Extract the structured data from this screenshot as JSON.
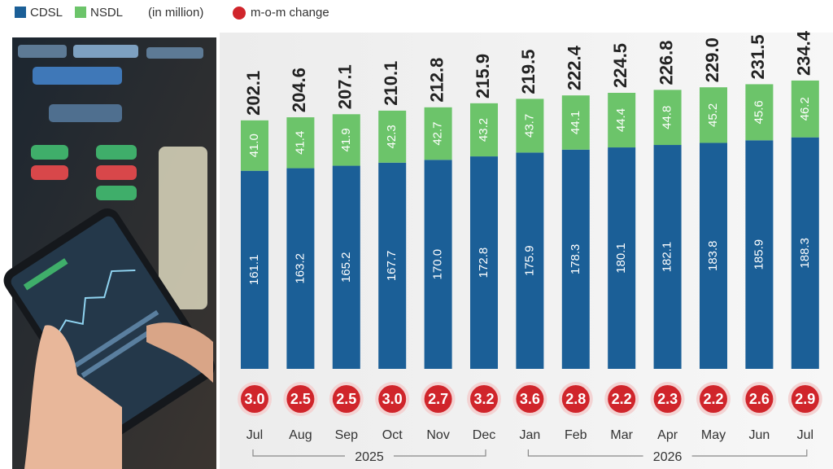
{
  "chart_data": {
    "type": "stacked-bar",
    "unit_note": "(in million)",
    "categories": [
      "Jul",
      "Aug",
      "Sep",
      "Oct",
      "Nov",
      "Dec",
      "Jan",
      "Feb",
      "Mar",
      "Apr",
      "May",
      "Jun",
      "Jul"
    ],
    "x_groups": [
      "2025",
      "2026"
    ],
    "series": [
      {
        "name": "CDSL",
        "color": "#1b5f97",
        "values": [
          161.1,
          163.2,
          165.2,
          167.7,
          170.0,
          172.8,
          175.9,
          178.3,
          180.1,
          182.1,
          183.8,
          185.9,
          188.3
        ],
        "value_labels": [
          "161.1",
          "163.2",
          "165.2",
          "167.7",
          "170.0",
          "172.8",
          "175.9",
          "178.3",
          "180.1",
          "182.1",
          "183.8",
          "185.9",
          "188.3"
        ]
      },
      {
        "name": "NSDL",
        "color": "#6cc46a",
        "values": [
          41.0,
          41.4,
          41.9,
          42.3,
          42.7,
          43.2,
          43.7,
          44.1,
          44.4,
          44.8,
          45.2,
          45.6,
          46.2
        ],
        "value_labels": [
          "41.0",
          "41.4",
          "41.9",
          "42.3",
          "42.7",
          "43.2",
          "43.7",
          "44.1",
          "44.4",
          "44.8",
          "45.2",
          "45.6",
          "46.2"
        ]
      }
    ],
    "totals": {
      "values": [
        202.1,
        204.6,
        207.1,
        210.1,
        212.8,
        215.9,
        219.5,
        222.4,
        224.5,
        226.8,
        229.0,
        231.5,
        234.4
      ],
      "value_labels": [
        "202.1",
        "204.6",
        "207.1",
        "210.1",
        "212.8",
        "215.9",
        "219.5",
        "222.4",
        "224.5",
        "226.8",
        "229.0",
        "231.5",
        "234.4"
      ]
    },
    "change": {
      "name": "m-o-m change",
      "color": "#d0252b",
      "values": [
        3.0,
        2.5,
        2.5,
        3.0,
        2.7,
        3.2,
        3.6,
        2.8,
        2.2,
        2.3,
        2.2,
        2.6,
        2.9
      ],
      "value_labels": [
        "3.0",
        "2.5",
        "2.5",
        "3.0",
        "2.7",
        "3.2",
        "3.6",
        "2.8",
        "2.2",
        "2.3",
        "2.2",
        "2.6",
        "2.9"
      ]
    }
  }
}
